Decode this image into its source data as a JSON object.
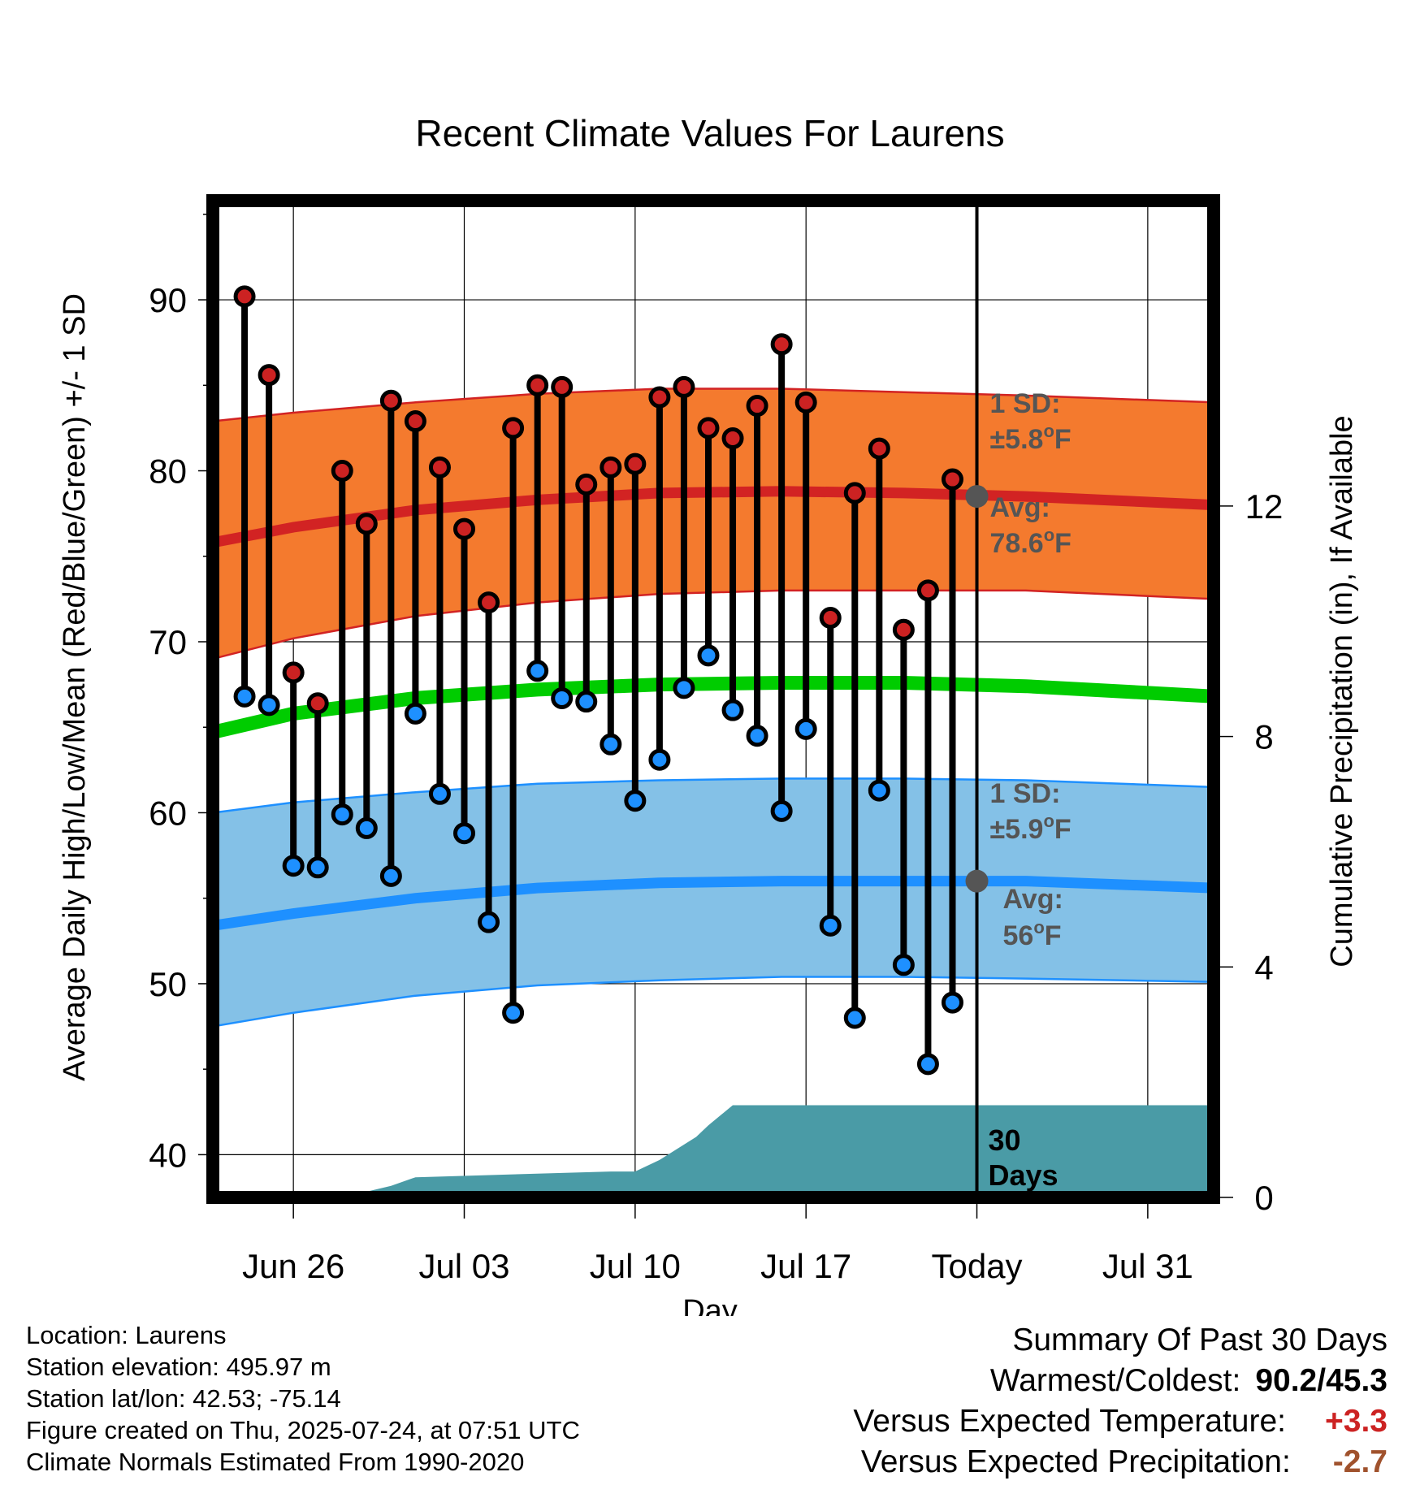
{
  "chart_data": {
    "type": "line",
    "title": "Recent Climate Values For Laurens",
    "xlabel": "Day",
    "ylabel_left": "Average Daily High/Low/Mean (Red/Blue/Green) +/- 1 SD",
    "ylabel_right": "Cumulative Precipitation (in), If Available",
    "ylim_left": [
      37.5,
      95.8
    ],
    "ylim_right": [
      0,
      17.3
    ],
    "x_tick_labels": [
      {
        "day": 0,
        "label": "Jun 26"
      },
      {
        "day": 7,
        "label": "Jul 03"
      },
      {
        "day": 14,
        "label": "Jul 10"
      },
      {
        "day": 21,
        "label": "Jul 17"
      },
      {
        "day": 28,
        "label": "Today"
      },
      {
        "day": 35,
        "label": "Jul 31"
      }
    ],
    "x_day_range": [
      -3.3,
      37.7
    ],
    "y_left_ticks": [
      40,
      50,
      60,
      70,
      80,
      90
    ],
    "y_right_ticks": [
      0,
      4,
      8,
      12
    ],
    "grid": true,
    "today_day": 28,
    "daily": {
      "day": [
        -2,
        -1,
        0,
        1,
        2,
        3,
        4,
        5,
        6,
        7,
        8,
        9,
        10,
        11,
        12,
        13,
        14,
        15,
        16,
        17,
        18,
        19,
        20,
        21,
        22,
        23,
        24,
        25,
        26,
        27
      ],
      "high": [
        90.2,
        85.6,
        68.2,
        66.4,
        80.0,
        76.9,
        84.1,
        82.9,
        80.2,
        76.6,
        72.3,
        82.5,
        85.0,
        84.9,
        79.2,
        80.2,
        80.4,
        84.3,
        84.9,
        82.5,
        81.9,
        83.8,
        87.4,
        84.0,
        71.4,
        78.7,
        81.3,
        70.7,
        73.0,
        79.5
      ],
      "low": [
        66.8,
        66.3,
        56.9,
        56.8,
        59.9,
        59.1,
        56.3,
        65.8,
        61.1,
        58.8,
        53.6,
        48.3,
        68.3,
        66.7,
        66.5,
        64.0,
        60.7,
        63.1,
        67.3,
        69.2,
        66.0,
        64.5,
        60.1,
        64.9,
        53.4,
        48.0,
        61.3,
        51.1,
        45.3,
        48.9
      ]
    },
    "normals": {
      "day": [
        -3.3,
        0,
        5,
        10,
        15,
        20,
        25,
        30,
        37.7
      ],
      "avg_high": [
        75.8,
        76.7,
        77.7,
        78.3,
        78.7,
        78.8,
        78.7,
        78.5,
        78.0
      ],
      "high_upper": [
        82.9,
        83.4,
        84.0,
        84.5,
        84.8,
        84.8,
        84.6,
        84.4,
        84.0
      ],
      "high_lower": [
        69.0,
        70.2,
        71.5,
        72.3,
        72.8,
        73.0,
        73.0,
        73.0,
        72.5
      ],
      "avg_mean": [
        64.7,
        65.8,
        66.7,
        67.2,
        67.5,
        67.6,
        67.6,
        67.4,
        66.8
      ],
      "avg_low": [
        53.4,
        54.1,
        55.0,
        55.6,
        55.9,
        56.0,
        56.0,
        56.0,
        55.6
      ],
      "low_upper": [
        60.0,
        60.6,
        61.2,
        61.7,
        61.9,
        62.0,
        62.0,
        61.9,
        61.5
      ],
      "low_lower": [
        47.5,
        48.3,
        49.3,
        49.9,
        50.2,
        50.4,
        50.4,
        50.3,
        50.1
      ]
    },
    "precipitation_cumulative": {
      "day": [
        -3.3,
        -0.2,
        0.0,
        3.0,
        4.0,
        5.0,
        13.0,
        14.0,
        15.0,
        16.5,
        17.0,
        18.0,
        28.0,
        37.7
      ],
      "value": [
        0.0,
        0.0,
        0.1,
        0.1,
        0.2,
        0.35,
        0.45,
        0.45,
        0.65,
        1.05,
        1.25,
        1.6,
        1.6,
        1.6
      ]
    },
    "annotations": {
      "high_sd": "1 SD:",
      "high_sd_value": "±5.8",
      "high_avg": "Avg:",
      "high_avg_value": "78.6",
      "low_sd": "1 SD:",
      "low_sd_value": "±5.9",
      "low_avg": "Avg:",
      "low_avg_value": "56",
      "degree_unit": "o",
      "unit_letter": "F",
      "days_label_1": "30",
      "days_label_2": "Days"
    },
    "colors": {
      "high_band": "#f47a2e",
      "high_avg_line": "#d22323",
      "mean_line": "#00cc00",
      "low_band": "#84c1e7",
      "low_avg_line": "#1e90ff",
      "high_marker": "#cc2222",
      "low_marker": "#1e90ff",
      "precip_fill": "#4a9ba6",
      "today_marker": "#555555"
    }
  },
  "footer": {
    "location": "Location: Laurens",
    "elevation": "Station elevation: 495.97 m",
    "latlon": "Station lat/lon: 42.53; -75.14",
    "created": "Figure created on Thu, 2025-07-24, at 07:51 UTC",
    "normals": "Climate Normals Estimated From 1990-2020"
  },
  "summary": {
    "heading": "Summary Of Past 30 Days",
    "warmest_label": "Warmest/Coldest:",
    "warmest_value": "90.2/45.3",
    "temp_label": "Versus Expected Temperature:",
    "temp_value": "+3.3",
    "temp_color": "#cc2222",
    "precip_label": "Versus Expected Precipitation:",
    "precip_value": "-2.7",
    "precip_color": "#a0522d"
  }
}
